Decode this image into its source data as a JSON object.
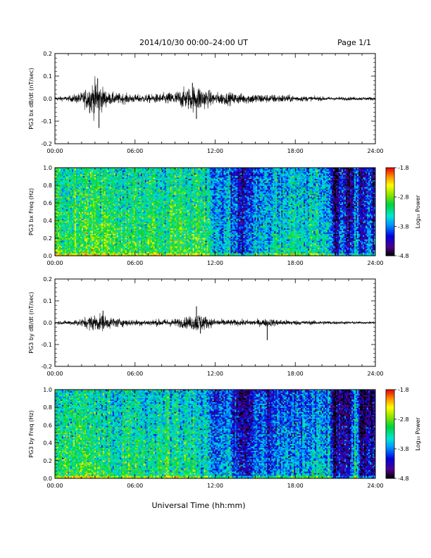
{
  "header": {
    "title": "2014/10/30  00:00–24:00 UT",
    "page": "Page 1/1"
  },
  "xaxis": {
    "label": "Universal Time (hh:mm)",
    "range": [
      0,
      24
    ],
    "tick_values": [
      0,
      6,
      12,
      18,
      24
    ],
    "tick_labels": [
      "00:00",
      "06:00",
      "12:00",
      "18:00",
      "24:00"
    ]
  },
  "colorbar": {
    "label": "Log₁₀ Power",
    "range": [
      -4.8,
      -1.8
    ],
    "tick_labels": [
      "-1.8",
      "-2.8",
      "-3.8",
      "-4.8"
    ]
  },
  "chart_data": [
    {
      "type": "line",
      "name": "bx-dbdt",
      "ylabel": "PG3 bx dB/dt (nT/sec)",
      "ylim": [
        -0.2,
        0.2
      ],
      "y_ticks": [
        "0.2",
        "0.1",
        "0.0",
        "-0.1",
        "-0.2"
      ],
      "x_hours": [
        0,
        1,
        2,
        3,
        3.5,
        4,
        5,
        6,
        7,
        8,
        9,
        10,
        10.8,
        11.5,
        12,
        13,
        14,
        15,
        16,
        17,
        18,
        19,
        20,
        21,
        22,
        23,
        24
      ],
      "amplitude": [
        0.01,
        0.012,
        0.03,
        0.09,
        0.06,
        0.03,
        0.025,
        0.02,
        0.02,
        0.025,
        0.035,
        0.055,
        0.065,
        0.04,
        0.03,
        0.03,
        0.025,
        0.025,
        0.02,
        0.02,
        0.015,
        0.012,
        0.01,
        0.008,
        0.008,
        0.008,
        0.008
      ],
      "spikes": [
        {
          "x": 3.2,
          "y": 0.09
        },
        {
          "x": 3.3,
          "y": -0.13
        },
        {
          "x": 10.3,
          "y": 0.07
        },
        {
          "x": 10.6,
          "y": -0.09
        }
      ]
    },
    {
      "type": "heatmap",
      "name": "bx-freq",
      "ylabel": "PG3 bx Freq (Hz)",
      "ylim": [
        0,
        1.0
      ],
      "y_ticks": [
        "1.0",
        "0.8",
        "0.6",
        "0.4",
        "0.2",
        "0.0"
      ],
      "x_hours": [
        0,
        1,
        2,
        3,
        4,
        5,
        6,
        7,
        8,
        9,
        10,
        11,
        11.5,
        12,
        13,
        14,
        15,
        16,
        17,
        18,
        19,
        20,
        20.5,
        21,
        21.5,
        22,
        22.5,
        23,
        23.5,
        24
      ],
      "base_log_power": [
        -3.3,
        -3.2,
        -3.0,
        -3.05,
        -3.1,
        -3.15,
        -3.2,
        -3.15,
        -3.15,
        -3.2,
        -3.25,
        -3.3,
        -3.3,
        -3.8,
        -3.7,
        -4.3,
        -3.7,
        -3.6,
        -3.5,
        -3.5,
        -3.5,
        -3.5,
        -3.5,
        -4.5,
        -4.0,
        -4.5,
        -3.8,
        -4.5,
        -3.9,
        -4.4
      ],
      "color_range": [
        -4.8,
        -1.8
      ]
    },
    {
      "type": "line",
      "name": "by-dbdt",
      "ylabel": "PG3 by dB/dt (nT/sec)",
      "ylim": [
        -0.2,
        0.2
      ],
      "y_ticks": [
        "0.2",
        "0.1",
        "0.0",
        "-0.1",
        "-0.2"
      ],
      "x_hours": [
        0,
        1,
        2,
        3,
        3.5,
        4,
        5,
        6,
        7,
        8,
        9,
        10,
        10.8,
        11.5,
        12,
        13,
        14,
        15,
        16,
        17,
        18,
        19,
        20,
        21,
        22,
        23,
        24
      ],
      "amplitude": [
        0.008,
        0.01,
        0.02,
        0.045,
        0.04,
        0.03,
        0.02,
        0.015,
        0.015,
        0.018,
        0.02,
        0.03,
        0.05,
        0.025,
        0.02,
        0.015,
        0.015,
        0.015,
        0.02,
        0.015,
        0.012,
        0.01,
        0.01,
        0.008,
        0.007,
        0.006,
        0.006
      ],
      "spikes": [
        {
          "x": 3.6,
          "y": 0.055
        },
        {
          "x": 10.6,
          "y": 0.075
        },
        {
          "x": 10.9,
          "y": -0.05
        },
        {
          "x": 15.9,
          "y": -0.08
        }
      ]
    },
    {
      "type": "heatmap",
      "name": "by-freq",
      "ylabel": "PG3 by Freq (Hz)",
      "ylim": [
        0,
        1.0
      ],
      "y_ticks": [
        "1.0",
        "0.8",
        "0.6",
        "0.4",
        "0.2",
        "0.0"
      ],
      "x_hours": [
        0,
        1,
        2,
        3,
        4,
        5,
        6,
        7,
        8,
        9,
        10,
        11,
        11.5,
        12,
        13,
        14,
        15,
        16,
        17,
        18,
        19,
        20,
        20.5,
        21,
        21.5,
        22,
        22.5,
        23,
        23.5,
        24
      ],
      "base_log_power": [
        -3.3,
        -3.25,
        -3.2,
        -3.2,
        -3.25,
        -3.3,
        -3.35,
        -3.3,
        -3.3,
        -3.3,
        -3.35,
        -3.4,
        -3.5,
        -3.9,
        -3.8,
        -4.3,
        -3.9,
        -3.9,
        -3.8,
        -3.8,
        -3.7,
        -3.7,
        -3.7,
        -4.6,
        -4.4,
        -4.6,
        -3.5,
        -4.6,
        -4.3,
        -4.4
      ],
      "color_range": [
        -4.8,
        -1.8
      ]
    }
  ]
}
